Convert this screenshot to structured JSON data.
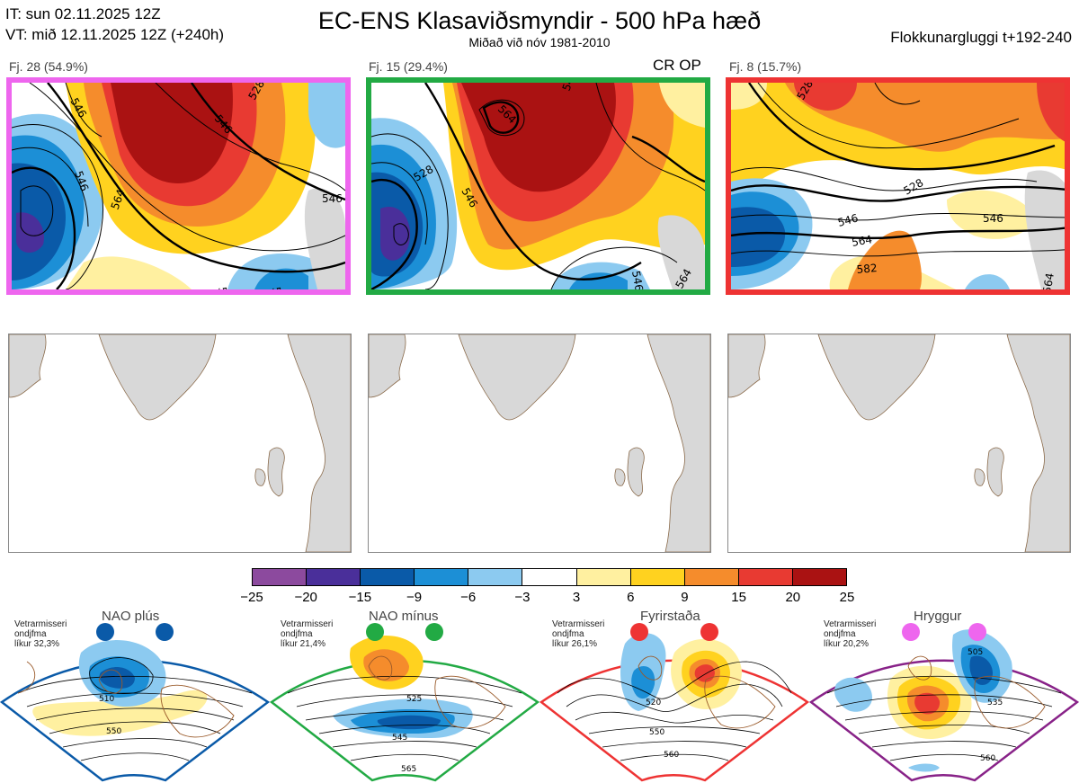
{
  "header": {
    "it_line": "IT: sun 02.11.2025 12Z",
    "vt_line": "VT: mið 12.11.2025 12Z  (+240h)",
    "title": "EC-ENS Klasaviðsmyndir - 500 hPa hæð",
    "subtitle": "Miðað við nóv 1981-2010",
    "window_label": "Flokkunargluggi t+192-240"
  },
  "clusters": [
    {
      "label": "Fj. 28 (54.9%)",
      "border_color": "#ee66ee",
      "contours": [
        "546",
        "528",
        "546",
        "546",
        "564",
        "546",
        "564",
        "546"
      ]
    },
    {
      "label": "Fj. 15 (29.4%)",
      "border_color": "#22aa44",
      "extra_label": "CR OP",
      "contours": [
        "564",
        "546",
        "528",
        "546",
        "546",
        "564"
      ]
    },
    {
      "label": "Fj. 8 (15.7%)",
      "border_color": "#ee3333",
      "contours": [
        "528",
        "528",
        "546",
        "546",
        "564",
        "582",
        "564"
      ]
    }
  ],
  "colorbar": {
    "ticks": [
      "−25",
      "−20",
      "−15",
      "−9",
      "−6",
      "−3",
      "3",
      "6",
      "9",
      "15",
      "20",
      "25"
    ],
    "colors": [
      "#8c4a9e",
      "#4a2f9a",
      "#0a5aa8",
      "#1c8fd6",
      "#8ccaf0",
      "#ffffff",
      "#fff0a0",
      "#ffd21f",
      "#f58c2c",
      "#e83a32",
      "#aa1212"
    ]
  },
  "regimes": [
    {
      "name": "NAO plús",
      "info_1": "Vetrarmisseri",
      "info_2": "ondjfma",
      "info_3": "líkur 32,3%",
      "color": "#0a5aa8",
      "contours": [
        "510",
        "550"
      ]
    },
    {
      "name": "NAO mínus",
      "info_1": "Vetrarmisseri",
      "info_2": "ondjfma",
      "info_3": "líkur 21,4%",
      "color": "#22aa44",
      "contours": [
        "525",
        "545",
        "565"
      ]
    },
    {
      "name": "Fyrirstaða",
      "info_1": "Vetrarmisseri",
      "info_2": "ondjfma",
      "info_3": "líkur 26,1%",
      "color": "#ee3333",
      "contours": [
        "520",
        "550",
        "560"
      ]
    },
    {
      "name": "Hryggur",
      "info_1": "Vetrarmisseri",
      "info_2": "ondjfma",
      "info_3": "líkur 20,2%",
      "color": "#882288",
      "contours": [
        "505",
        "535",
        "560"
      ]
    }
  ]
}
